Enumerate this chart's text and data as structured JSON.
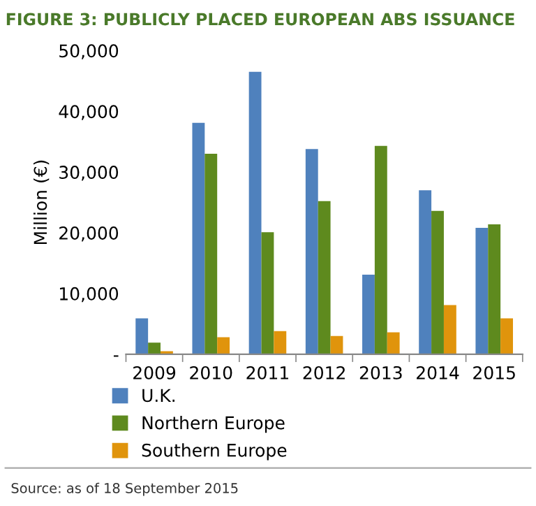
{
  "chart_data": {
    "type": "bar",
    "title": "FIGURE 3: PUBLICLY PLACED EUROPEAN ABS ISSUANCE",
    "ylabel": "Million (€)",
    "categories": [
      "2009",
      "2010",
      "2011",
      "2012",
      "2013",
      "2014",
      "2015"
    ],
    "series": [
      {
        "name": "U.K.",
        "color": "#4f81bd",
        "values": [
          5900,
          38100,
          46500,
          33800,
          13100,
          27000,
          20800
        ]
      },
      {
        "name": "Northern Europe",
        "color": "#5e8a1e",
        "values": [
          1900,
          33000,
          20100,
          25200,
          34300,
          23600,
          21400
        ]
      },
      {
        "name": "Southern Europe",
        "color": "#e0940c",
        "values": [
          500,
          2800,
          3800,
          3000,
          3600,
          8100,
          5900
        ]
      }
    ],
    "ylim": [
      0,
      50000
    ],
    "yticks": [
      {
        "value": 0,
        "label": "-"
      },
      {
        "value": 10000,
        "label": "10,000"
      },
      {
        "value": 20000,
        "label": "20,000"
      },
      {
        "value": 30000,
        "label": "30,000"
      },
      {
        "value": 40000,
        "label": "40,000"
      },
      {
        "value": 50000,
        "label": "50,000"
      }
    ],
    "grid": false,
    "legend": "bottom",
    "annotations": [
      "Source: as of 18 September 2015"
    ]
  }
}
